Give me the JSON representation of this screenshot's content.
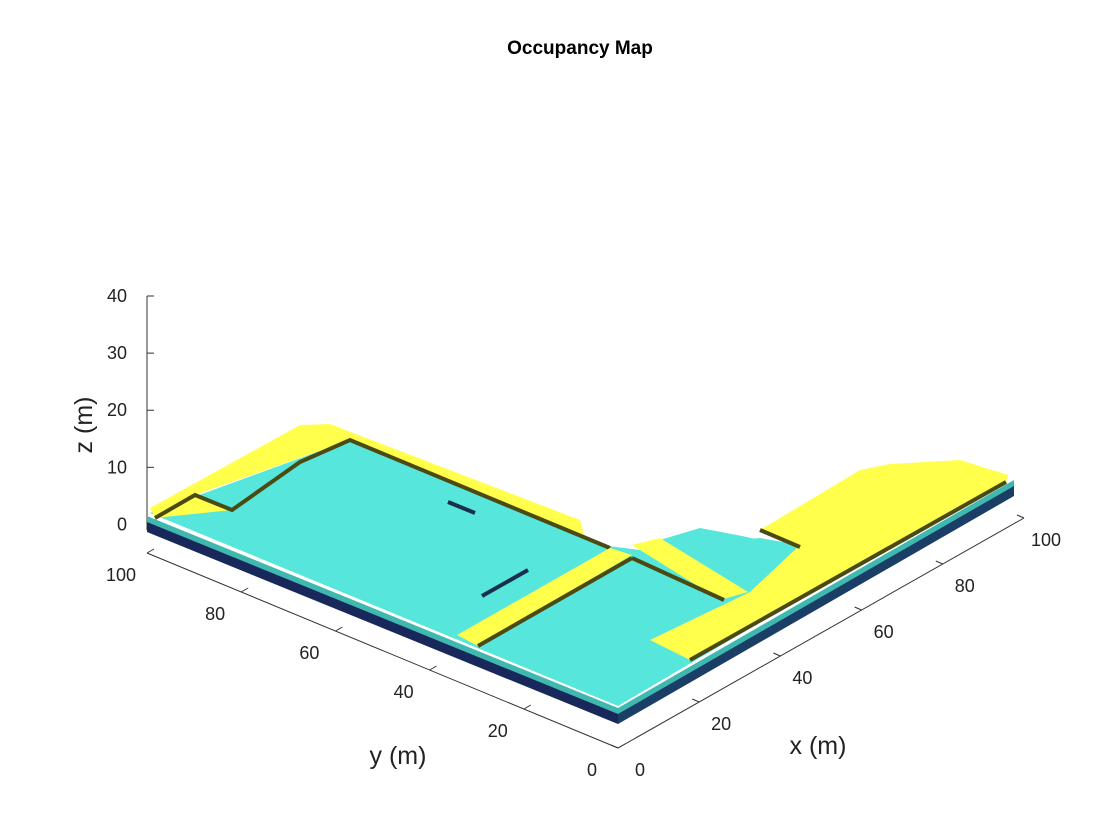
{
  "chart_data": {
    "type": "3d-occupancy-voxel",
    "title": "Occupancy Map",
    "xlabel": "x (m)",
    "ylabel": "y (m)",
    "zlabel": "z (m)",
    "xlim": [
      0,
      100
    ],
    "ylim": [
      0,
      100
    ],
    "zlim": [
      -5,
      40
    ],
    "x_ticks": [
      "0",
      "20",
      "40",
      "60",
      "80",
      "100"
    ],
    "y_ticks": [
      "0",
      "20",
      "40",
      "60",
      "80",
      "100"
    ],
    "z_ticks": [
      "0",
      "10",
      "20",
      "30",
      "40"
    ],
    "colors": {
      "floor": "#56e6dc",
      "floor_shade": "#3fb8b0",
      "walls": "#ffff4c",
      "walls_shade": "#4a4a12",
      "base": "#19285a",
      "axis": "#333333"
    }
  }
}
